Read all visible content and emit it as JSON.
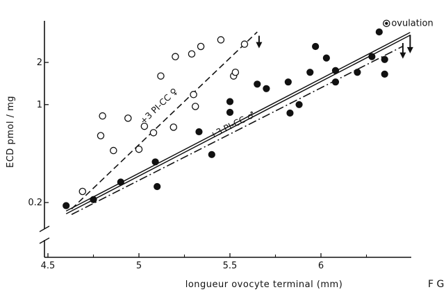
{
  "chart_data": {
    "type": "scatter",
    "title": "",
    "xlabel": "longueur ovocyte terminal (mm)",
    "ylabel": "ECD pmol / mg",
    "xlim": [
      4.5,
      6.5
    ],
    "ylim": [
      0.15,
      3.5
    ],
    "yscale": "log",
    "grid": false,
    "x_ticks": [
      4.5,
      5,
      5.5,
      6
    ],
    "x_tick_labels": [
      "4.5",
      "5",
      "5.5",
      "6"
    ],
    "y_ticks": [
      0.2,
      1,
      2
    ],
    "y_tick_labels": [
      "0.2",
      "1",
      "2"
    ],
    "series": [
      {
        "marker": "open-circle",
        "points": [
          {
            "x": 4.69,
            "y": 0.24
          },
          {
            "x": 4.79,
            "y": 0.6
          },
          {
            "x": 4.8,
            "y": 0.83
          },
          {
            "x": 4.86,
            "y": 0.47
          },
          {
            "x": 4.94,
            "y": 0.8
          },
          {
            "x": 5.0,
            "y": 0.48
          },
          {
            "x": 5.03,
            "y": 0.7
          },
          {
            "x": 5.08,
            "y": 0.63
          },
          {
            "x": 5.12,
            "y": 1.6
          },
          {
            "x": 5.19,
            "y": 0.69
          },
          {
            "x": 5.2,
            "y": 2.2
          },
          {
            "x": 5.29,
            "y": 2.3
          },
          {
            "x": 5.3,
            "y": 1.18
          },
          {
            "x": 5.31,
            "y": 0.97
          },
          {
            "x": 5.34,
            "y": 2.6
          },
          {
            "x": 5.45,
            "y": 2.9
          },
          {
            "x": 5.52,
            "y": 1.6
          },
          {
            "x": 5.53,
            "y": 1.7
          },
          {
            "x": 5.58,
            "y": 2.7
          }
        ]
      },
      {
        "marker": "filled-circle",
        "points": [
          {
            "x": 4.6,
            "y": 0.19
          },
          {
            "x": 4.75,
            "y": 0.21
          },
          {
            "x": 4.9,
            "y": 0.28
          },
          {
            "x": 5.09,
            "y": 0.39
          },
          {
            "x": 5.1,
            "y": 0.26
          },
          {
            "x": 5.33,
            "y": 0.64
          },
          {
            "x": 5.4,
            "y": 0.44
          },
          {
            "x": 5.5,
            "y": 0.88
          },
          {
            "x": 5.5,
            "y": 1.05
          },
          {
            "x": 5.65,
            "y": 1.4
          },
          {
            "x": 5.7,
            "y": 1.3
          },
          {
            "x": 5.82,
            "y": 1.45
          },
          {
            "x": 5.83,
            "y": 0.87
          },
          {
            "x": 5.88,
            "y": 1.0
          },
          {
            "x": 5.94,
            "y": 1.7
          },
          {
            "x": 5.97,
            "y": 2.6
          },
          {
            "x": 6.03,
            "y": 2.15
          },
          {
            "x": 6.08,
            "y": 1.75
          },
          {
            "x": 6.08,
            "y": 1.45
          },
          {
            "x": 6.2,
            "y": 1.7
          },
          {
            "x": 6.28,
            "y": 2.2
          },
          {
            "x": 6.32,
            "y": 3.3
          },
          {
            "x": 6.35,
            "y": 2.1
          },
          {
            "x": 6.35,
            "y": 1.65
          }
        ]
      }
    ],
    "lines": [
      {
        "style": "dashed",
        "label": "+3 PI-CC ♀",
        "x": [
          4.63,
          5.65
        ],
        "y": [
          0.18,
          3.3
        ]
      },
      {
        "style": "solid-double",
        "label": "",
        "x": [
          4.6,
          6.49
        ],
        "y": [
          0.17,
          3.2
        ]
      },
      {
        "style": "dash-dot",
        "label": "+3 PI-CC ♂",
        "x": [
          4.63,
          6.45
        ],
        "y": [
          0.17,
          2.7
        ]
      }
    ],
    "arrows": [
      {
        "x": 5.66,
        "y_from": 3.1,
        "y_to": 2.55
      },
      {
        "x": 6.45,
        "y_from": 2.75,
        "y_to": 2.15
      },
      {
        "x": 6.49,
        "y_from": 3.15,
        "y_to": 2.35
      }
    ],
    "annotations": {
      "ovulation": {
        "text": "ovulation",
        "x": 6.36,
        "y": 3.8
      }
    },
    "figure_label": "F G"
  }
}
